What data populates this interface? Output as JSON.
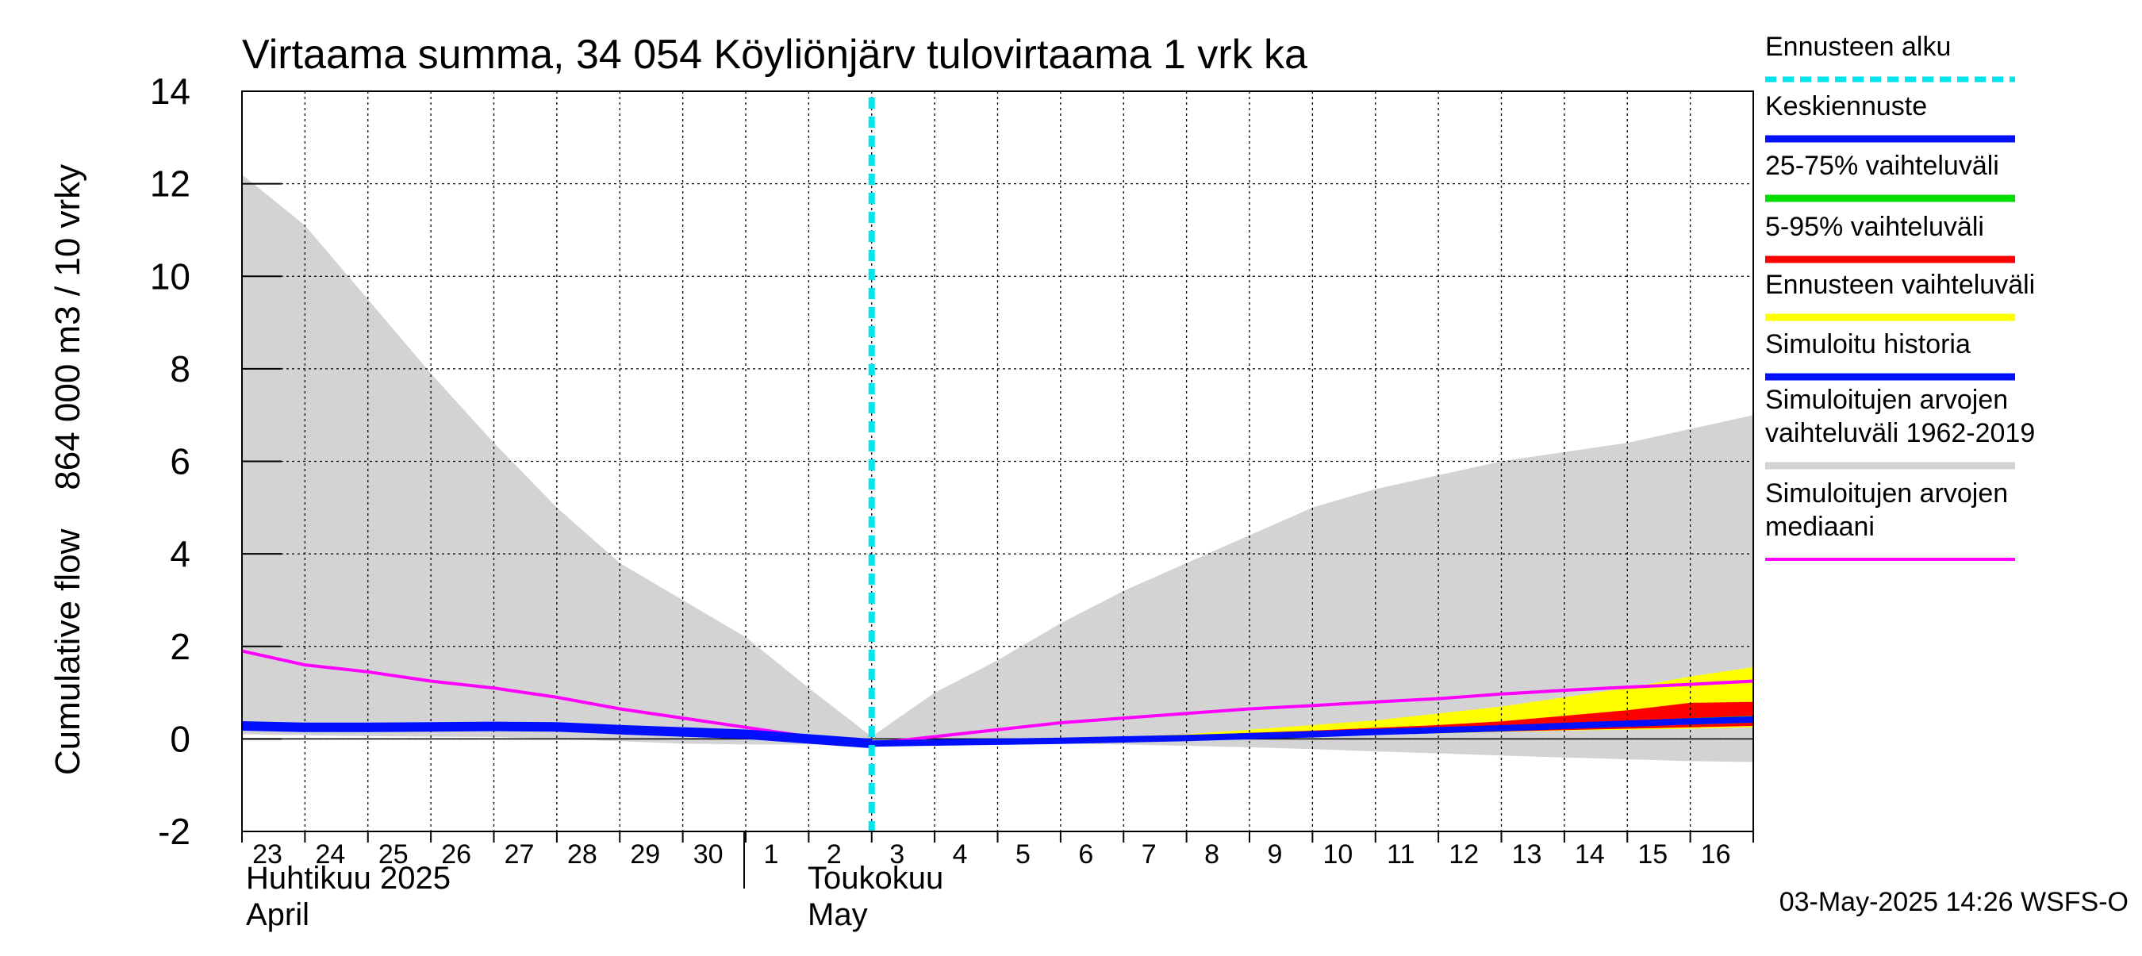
{
  "chart_data": {
    "type": "area",
    "title": "Virtaama summa, 34 054 Köyliönjärv tulovirtaama 1 vrk ka",
    "ylabel": "Cumulative flow    864 000 m3 / 10 vrky",
    "ylim": [
      -2,
      14
    ],
    "yticks": [
      "-2",
      "0",
      "2",
      "4",
      "6",
      "8",
      "10",
      "12",
      "14"
    ],
    "ytick_values": [
      -2,
      0,
      2,
      4,
      6,
      8,
      10,
      12,
      14
    ],
    "grid": true,
    "x_start": 23,
    "x_end": 47,
    "x_tick_labels": [
      "23",
      "24",
      "25",
      "26",
      "27",
      "28",
      "29",
      "30",
      "1",
      "2",
      "3",
      "4",
      "5",
      "6",
      "7",
      "8",
      "9",
      "10",
      "11",
      "12",
      "13",
      "14",
      "15",
      "16"
    ],
    "month_labels": {
      "april_fi": "Huhtikuu  2025",
      "april_en": "April",
      "may_fi": "Toukokuu",
      "may_en": "May"
    },
    "forecast_start": 33,
    "footer": "03-May-2025 14:26 WSFS-O",
    "hist_range": {
      "x": [
        23,
        24,
        25,
        26,
        27,
        28,
        29,
        30,
        31,
        32,
        33,
        34,
        35,
        36,
        37,
        38,
        39,
        40,
        41,
        42,
        43,
        44,
        45,
        46,
        47
      ],
      "upper": [
        12.2,
        11.1,
        9.5,
        7.9,
        6.4,
        5.0,
        3.8,
        3.0,
        2.2,
        1.1,
        0.05,
        1.0,
        1.7,
        2.5,
        3.2,
        3.8,
        4.4,
        5.0,
        5.4,
        5.7,
        6.0,
        6.2,
        6.4,
        6.7,
        7.0
      ],
      "lower": [
        0.1,
        0.08,
        0.06,
        0.05,
        0.04,
        0.0,
        -0.05,
        -0.1,
        -0.12,
        -0.12,
        -0.1,
        -0.1,
        -0.1,
        -0.1,
        -0.12,
        -0.15,
        -0.18,
        -0.22,
        -0.27,
        -0.31,
        -0.36,
        -0.4,
        -0.44,
        -0.48,
        -0.5
      ]
    },
    "median": {
      "x": [
        23,
        24,
        25,
        26,
        27,
        28,
        29,
        30,
        31,
        32,
        33,
        34,
        35,
        36,
        37,
        38,
        39,
        40,
        41,
        42,
        43,
        44,
        45,
        46,
        47
      ],
      "y": [
        1.9,
        1.6,
        1.45,
        1.25,
        1.1,
        0.9,
        0.65,
        0.45,
        0.25,
        0.05,
        -0.1,
        0.05,
        0.2,
        0.35,
        0.45,
        0.55,
        0.65,
        0.72,
        0.8,
        0.87,
        0.97,
        1.05,
        1.12,
        1.18,
        1.25
      ]
    },
    "simulated_history": {
      "x": [
        23,
        24,
        25,
        26,
        27,
        28,
        29,
        30,
        31,
        32,
        33
      ],
      "y": [
        0.28,
        0.25,
        0.25,
        0.26,
        0.27,
        0.26,
        0.2,
        0.15,
        0.1,
        0.0,
        -0.1
      ]
    },
    "forecast_range": {
      "x": [
        33,
        34,
        35,
        36,
        37,
        38,
        39,
        40,
        41,
        42,
        43,
        44,
        45,
        46,
        47
      ],
      "upper": [
        -0.1,
        -0.05,
        -0.03,
        0.0,
        0.05,
        0.1,
        0.2,
        0.3,
        0.4,
        0.55,
        0.7,
        0.9,
        1.1,
        1.35,
        1.55
      ],
      "lower": [
        -0.1,
        -0.1,
        -0.1,
        -0.08,
        -0.05,
        -0.02,
        0.02,
        0.06,
        0.1,
        0.12,
        0.15,
        0.18,
        0.2,
        0.22,
        0.25
      ]
    },
    "range_5_95": {
      "x": [
        33,
        34,
        35,
        36,
        37,
        38,
        39,
        40,
        41,
        42,
        43,
        44,
        45,
        46,
        47
      ],
      "upper": [
        -0.1,
        -0.06,
        -0.04,
        -0.01,
        0.03,
        0.07,
        0.13,
        0.18,
        0.24,
        0.3,
        0.38,
        0.5,
        0.62,
        0.78,
        0.8
      ],
      "lower": [
        -0.1,
        -0.1,
        -0.09,
        -0.07,
        -0.04,
        -0.01,
        0.03,
        0.07,
        0.1,
        0.13,
        0.16,
        0.19,
        0.22,
        0.25,
        0.28
      ]
    },
    "range_25_75": {
      "x": [
        33,
        34,
        35,
        36,
        37,
        38,
        39,
        40,
        41,
        42,
        43,
        44,
        45,
        46,
        47
      ],
      "upper": [
        -0.1,
        -0.07,
        -0.05,
        -0.03,
        0.0,
        0.04,
        0.08,
        0.12,
        0.17,
        0.21,
        0.26,
        0.32,
        0.38,
        0.45,
        0.5
      ],
      "lower": [
        -0.1,
        -0.09,
        -0.08,
        -0.06,
        -0.03,
        0.0,
        0.05,
        0.09,
        0.13,
        0.16,
        0.19,
        0.23,
        0.27,
        0.31,
        0.35
      ]
    },
    "mean_forecast": {
      "x": [
        33,
        34,
        35,
        36,
        37,
        38,
        39,
        40,
        41,
        42,
        43,
        44,
        45,
        46,
        47
      ],
      "y": [
        -0.1,
        -0.08,
        -0.06,
        -0.04,
        -0.01,
        0.02,
        0.06,
        0.1,
        0.15,
        0.19,
        0.23,
        0.28,
        0.33,
        0.38,
        0.42
      ]
    },
    "legend": [
      {
        "label": "Ennusteen alku",
        "color": "#00e5ee",
        "style": "dashed"
      },
      {
        "label": "Keskiennuste",
        "color": "#0010ff",
        "style": "solid"
      },
      {
        "label": "25-75% vaihteluväli",
        "color": "#00dd00",
        "style": "solid"
      },
      {
        "label": "5-95% vaihteluväli",
        "color": "#ff0000",
        "style": "solid"
      },
      {
        "label": "Ennusteen vaihteluväli",
        "color": "#ffff00",
        "style": "solid"
      },
      {
        "label": "Simuloitu historia",
        "color": "#0010ff",
        "style": "solid"
      },
      {
        "label": "Simuloitujen arvojen\nvaihteluväli 1962-2019",
        "color": "#d3d3d3",
        "style": "solid"
      },
      {
        "label": "Simuloitujen arvojen\nmediaani",
        "color": "#ff00ff",
        "style": "solid"
      }
    ]
  }
}
